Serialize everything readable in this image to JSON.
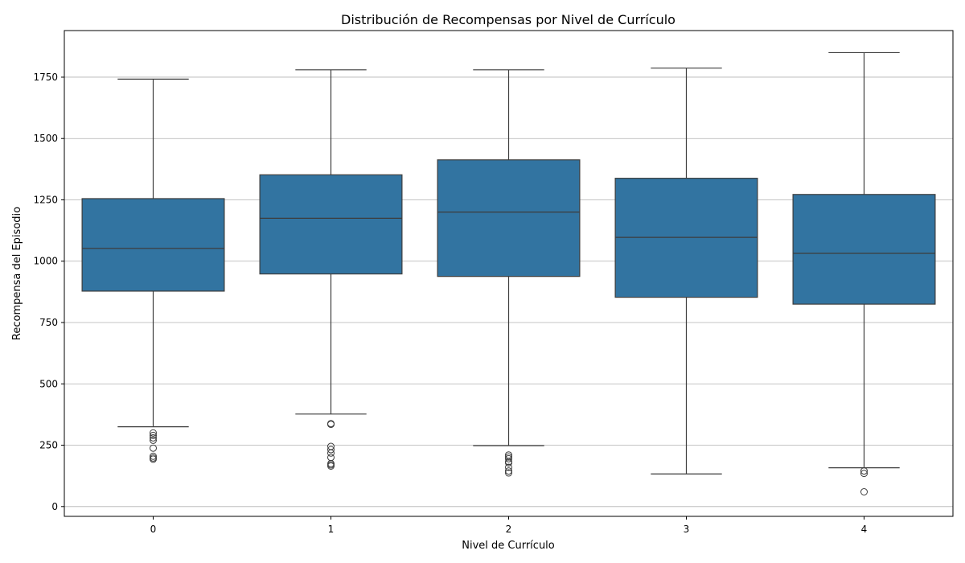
{
  "chart_data": {
    "type": "box",
    "title": "Distribución de Recompensas por Nivel de Currículo",
    "xlabel": "Nivel de Currículo",
    "ylabel": "Recompensa del Episodio",
    "ylim": [
      -40,
      1940
    ],
    "yticks": [
      0,
      250,
      500,
      750,
      1000,
      1250,
      1500,
      1750
    ],
    "grid": "y",
    "box_color": "#3274a1",
    "line_color": "#3d3d3d",
    "grid_color": "#b0b0b0",
    "categories": [
      "0",
      "1",
      "2",
      "3",
      "4"
    ],
    "boxes": [
      {
        "category": "0",
        "whisker_low": 325,
        "q1": 878,
        "median": 1052,
        "q3": 1255,
        "whisker_high": 1742,
        "outliers": [
          300,
          290,
          280,
          270,
          238,
          205,
          198,
          193
        ]
      },
      {
        "category": "1",
        "whisker_low": 377,
        "q1": 948,
        "median": 1175,
        "q3": 1352,
        "whisker_high": 1780,
        "outliers": [
          338,
          335,
          245,
          232,
          218,
          200,
          175,
          170,
          165
        ]
      },
      {
        "category": "2",
        "whisker_low": 248,
        "q1": 938,
        "median": 1200,
        "q3": 1413,
        "whisker_high": 1780,
        "outliers": [
          210,
          202,
          195,
          183,
          178,
          160,
          145,
          137
        ]
      },
      {
        "category": "3",
        "whisker_low": 133,
        "q1": 853,
        "median": 1097,
        "q3": 1338,
        "whisker_high": 1787,
        "outliers": []
      },
      {
        "category": "4",
        "whisker_low": 158,
        "q1": 825,
        "median": 1032,
        "q3": 1272,
        "whisker_high": 1850,
        "outliers": [
          145,
          135,
          60
        ]
      }
    ]
  }
}
